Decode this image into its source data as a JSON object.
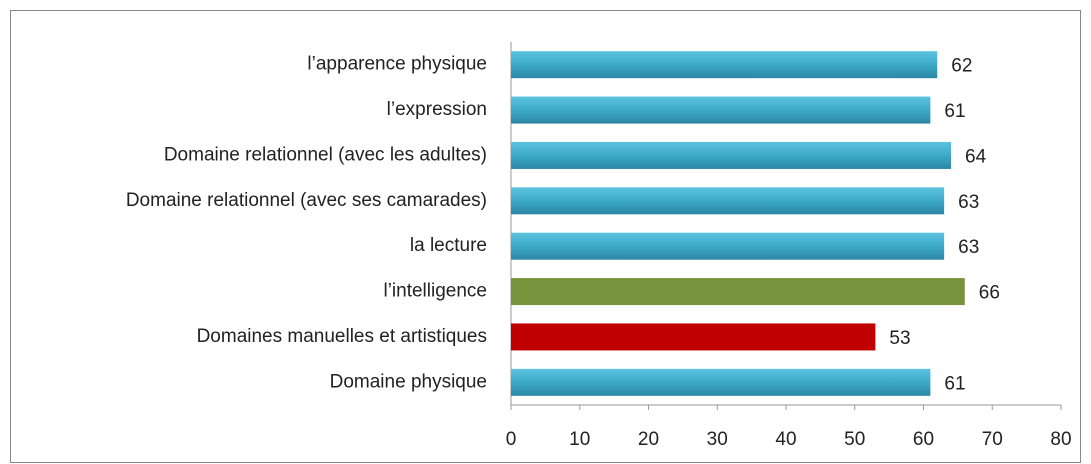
{
  "chart_data": {
    "type": "bar",
    "orientation": "horizontal",
    "categories": [
      "l’apparence physique",
      "l’expression",
      "Domaine relationnel (avec les adultes)",
      "Domaine relationnel (avec ses camarades)",
      "la lecture",
      "l’intelligence",
      "Domaines manuelles et artistiques",
      "Domaine physique"
    ],
    "values": [
      62,
      61,
      64,
      63,
      63,
      66,
      53,
      61
    ],
    "colors": [
      "#3ca9c8",
      "#3ca9c8",
      "#3ca9c8",
      "#3ca9c8",
      "#3ca9c8",
      "#77933c",
      "#c00000",
      "#3ca9c8"
    ],
    "xlim": [
      0,
      80
    ],
    "xticks": [
      0,
      10,
      20,
      30,
      40,
      50,
      60,
      70,
      80
    ],
    "grid": false
  }
}
